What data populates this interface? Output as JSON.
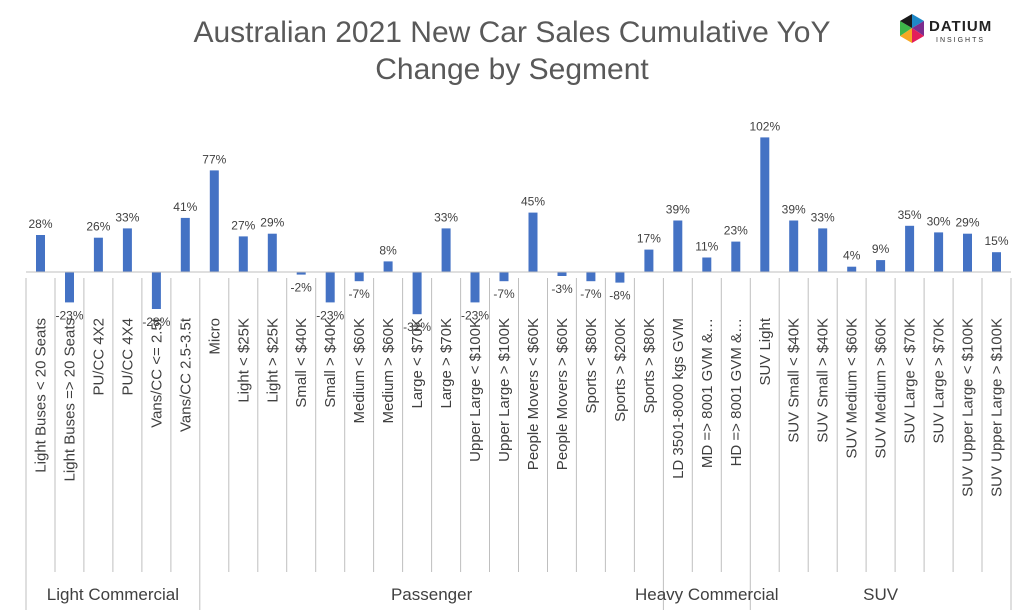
{
  "chart_data": {
    "type": "bar",
    "title": "Australian 2021 New Car Sales Cumulative YoY Change by Segment",
    "title_lines": [
      "Australian 2021  New Car Sales Cumulative YoY",
      "Change by Segment"
    ],
    "categories": [
      "Light Buses < 20 Seats",
      "Light Buses => 20 Seats",
      "PU/CC 4X2",
      "PU/CC 4X4",
      "Vans/CC <= 2.5t",
      "Vans/CC 2.5-3.5t",
      "Micro",
      "Light < $25K",
      "Light > $25K",
      "Small < $40K",
      "Small > $40K",
      "Medium < $60K",
      "Medium > $60K",
      "Large < $70K",
      "Large > $70K",
      "Upper Large < $100K",
      "Upper Large > $100K",
      "People Movers < $60K",
      "People Movers > $60K",
      "Sports < $80K",
      "Sports > $200K",
      "Sports > $80K",
      "LD 3501-8000 kgs GVM",
      "MD => 8001 GVM &…",
      "HD => 8001 GVM &…",
      "SUV Light",
      "SUV Small < $40K",
      "SUV Small > $40K",
      "SUV Medium < $60K",
      "SUV Medium > $60K",
      "SUV Large < $70K",
      "SUV Large > $70K",
      "SUV Upper Large < $100K",
      "SUV Upper Large > $100K"
    ],
    "values": [
      28,
      -23,
      26,
      33,
      -28,
      41,
      77,
      27,
      29,
      -2,
      -23,
      -7,
      8,
      -32,
      33,
      -23,
      -7,
      45,
      -3,
      -7,
      -8,
      17,
      39,
      11,
      23,
      102,
      39,
      33,
      4,
      9,
      35,
      30,
      29,
      15
    ],
    "data_labels": [
      "28%",
      "-23%",
      "26%",
      "33%",
      "-28%",
      "41%",
      "77%",
      "27%",
      "29%",
      "-2%",
      "-23%",
      "-7%",
      "8%",
      "-32%",
      "33%",
      "-23%",
      "-7%",
      "45%",
      "-3%",
      "-7%",
      "-8%",
      "17%",
      "39%",
      "11%",
      "23%",
      "102%",
      "39%",
      "33%",
      "4%",
      "9%",
      "35%",
      "30%",
      "29%",
      "15%"
    ],
    "groups": [
      {
        "name": "Light Commercial",
        "start": 0,
        "end": 5
      },
      {
        "name": "Passenger",
        "start": 6,
        "end": 21
      },
      {
        "name": "Heavy Commercial",
        "start": 22,
        "end": 24
      },
      {
        "name": "SUV",
        "start": 25,
        "end": 33
      }
    ],
    "bar_color": "#4472C4",
    "grid": false,
    "legend": "none"
  },
  "logo": {
    "name": "DATIUM",
    "tagline": "INSIGHTS",
    "colors": [
      "#1e88c8",
      "#7b2d8e",
      "#e31e5a",
      "#f7a823",
      "#3db54a"
    ]
  }
}
